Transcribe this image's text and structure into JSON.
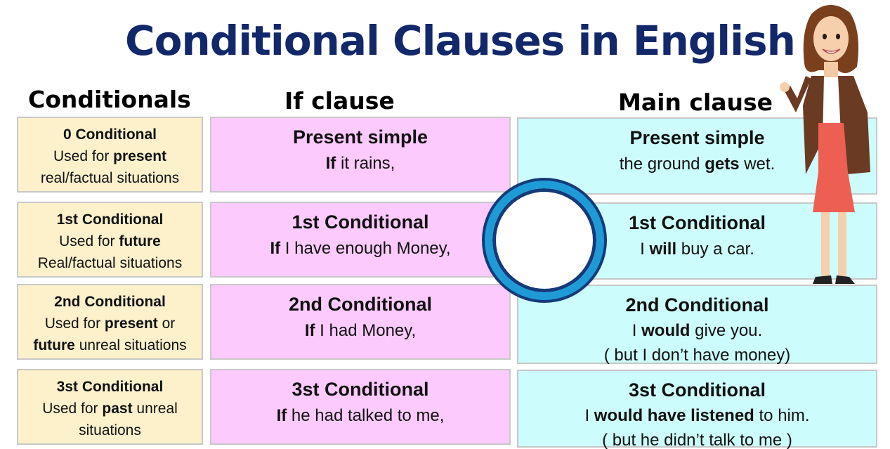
{
  "title": "Conditional Clauses in English",
  "headers": {
    "conditionals": "Conditionals",
    "if_clause": "If clause",
    "main_clause": "Main clause"
  },
  "rows": [
    {
      "cond": {
        "title": "0 Conditional",
        "l1a": "Used for ",
        "l1b": "present",
        "l1c": "",
        "l2a": "",
        "l2b": "",
        "l2c": "real/factual situations"
      },
      "if": {
        "title": "Present simple",
        "b": "If",
        "rest": " it rains,"
      },
      "main": {
        "title": "Present simple",
        "a": "the ground ",
        "b": "gets",
        "c": " wet.",
        "note": ""
      }
    },
    {
      "cond": {
        "title": "1st Conditional",
        "l1a": "Used for ",
        "l1b": "future",
        "l1c": "",
        "l2a": "",
        "l2b": "",
        "l2c": "Real/factual situations"
      },
      "if": {
        "title": "1st Conditional",
        "b": "If",
        "rest": " I have enough Money,"
      },
      "main": {
        "title": "1st Conditional",
        "a": "I ",
        "b": "will",
        "c": " buy a car.",
        "note": ""
      }
    },
    {
      "cond": {
        "title": "2nd Conditional",
        "l1a": "Used for ",
        "l1b": "present",
        "l1c": " or",
        "l2a": "",
        "l2b": "future",
        "l2c": " unreal situations"
      },
      "if": {
        "title": "2nd Conditional",
        "b": "If",
        "rest": " I had Money,"
      },
      "main": {
        "title": "2nd Conditional",
        "a": "I ",
        "b": "would",
        "c": " give you.",
        "note": "( but I don’t have money)"
      }
    },
    {
      "cond": {
        "title": "3st Conditional",
        "l1a": "Used for ",
        "l1b": "past",
        "l1c": " unreal",
        "l2a": "",
        "l2b": "",
        "l2c": "situations"
      },
      "if": {
        "title": "3st Conditional",
        "b": "If",
        "rest": " he had talked to me,"
      },
      "main": {
        "title": "3st Conditional",
        "a": "I ",
        "b": "would have listened",
        "c": " to him.",
        "note": "( but he didn’t talk to me )"
      }
    }
  ],
  "colors": {
    "title": "#12286b",
    "conditionals_bg": "#fdf1cc",
    "if_bg": "#fccafc",
    "main_bg": "#ccfcfc",
    "ring": "#1e9bd6"
  },
  "icons": {
    "center_ring": "ring-icon",
    "illustration": "teacher-illustration"
  }
}
